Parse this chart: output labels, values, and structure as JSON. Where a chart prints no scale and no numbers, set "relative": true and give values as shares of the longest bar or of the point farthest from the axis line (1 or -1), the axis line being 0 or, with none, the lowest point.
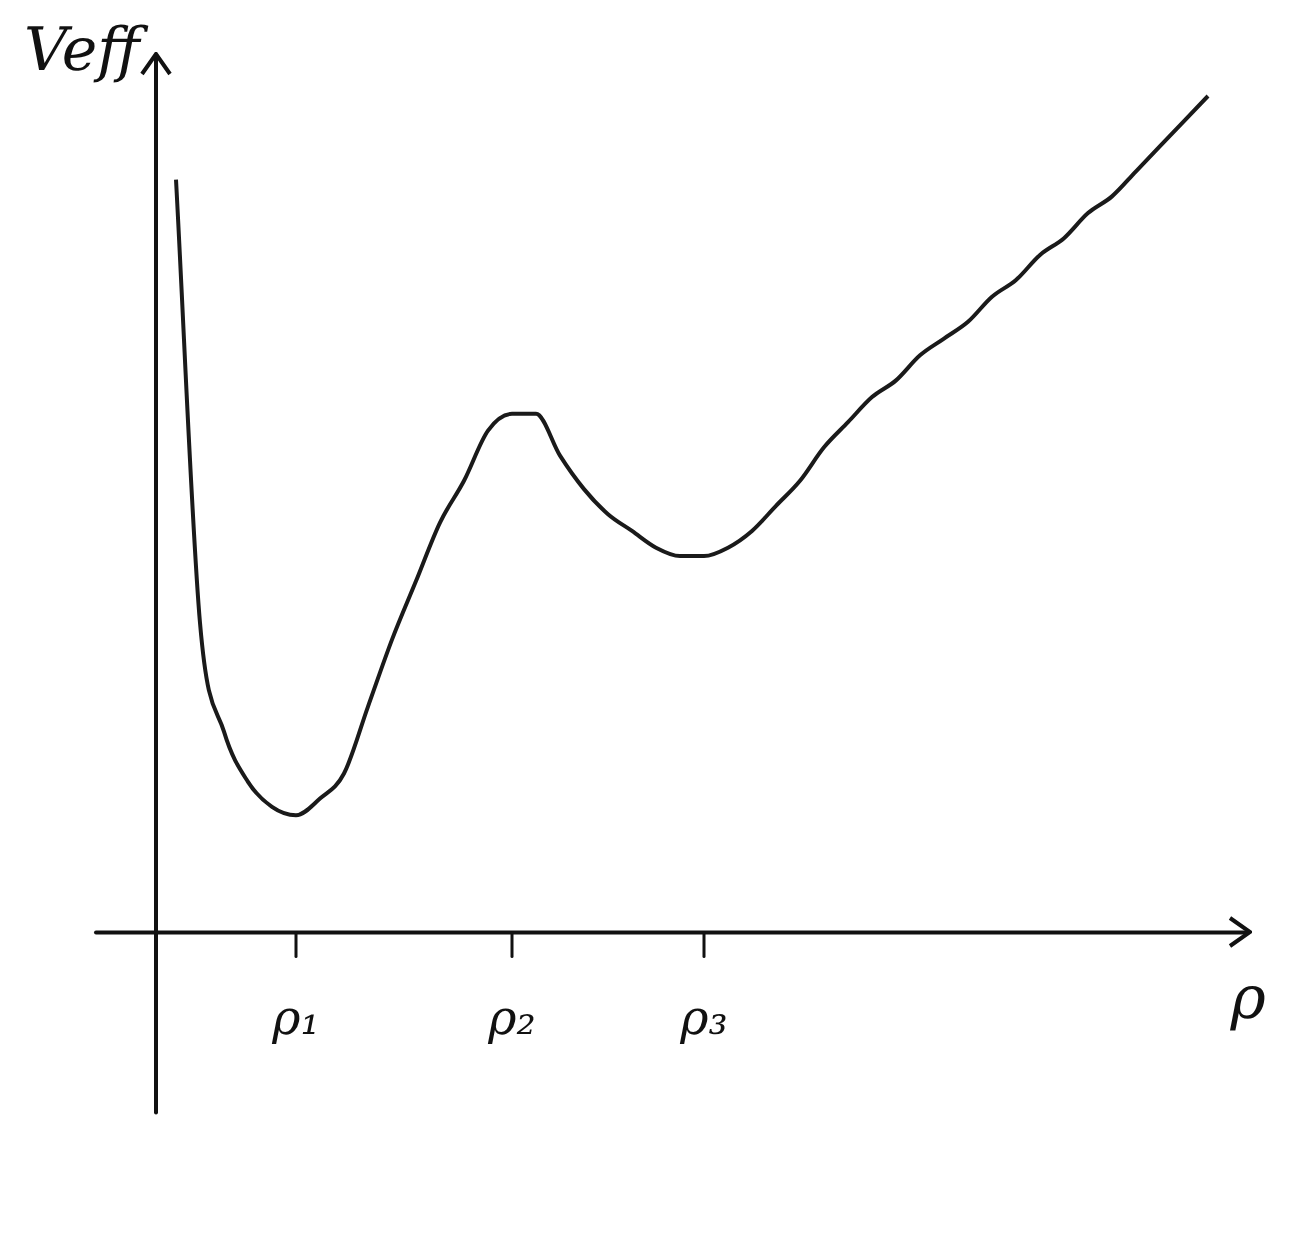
{
  "chart_data": {
    "type": "line",
    "relative": true,
    "ylabel": "Veff",
    "xlabel": "ρ",
    "color": "#1a1a1a",
    "legend": false,
    "grid": false,
    "marker": "none",
    "categories": [
      null,
      null,
      null,
      null,
      null,
      "ρ₁",
      null,
      null,
      null,
      null,
      null,
      null,
      null,
      null,
      "ρ₂",
      null,
      null,
      null,
      null,
      null,
      null,
      null,
      "ρ₃",
      null,
      null,
      null,
      null,
      null,
      null,
      null,
      null,
      null,
      null,
      null,
      null,
      null,
      null,
      null,
      null,
      null,
      null,
      null,
      null,
      null
    ],
    "values": [
      0.9,
      0.37,
      0.24,
      0.18,
      0.15,
      0.14,
      0.16,
      0.19,
      0.27,
      0.35,
      0.42,
      0.49,
      0.54,
      0.6,
      0.62,
      0.62,
      0.57,
      0.53,
      0.5,
      0.48,
      0.46,
      0.45,
      0.45,
      0.46,
      0.48,
      0.51,
      0.54,
      0.58,
      0.61,
      0.64,
      0.66,
      0.69,
      0.71,
      0.73,
      0.76,
      0.78,
      0.81,
      0.83,
      0.86,
      0.88,
      0.91,
      0.94,
      0.97,
      1.0
    ]
  }
}
